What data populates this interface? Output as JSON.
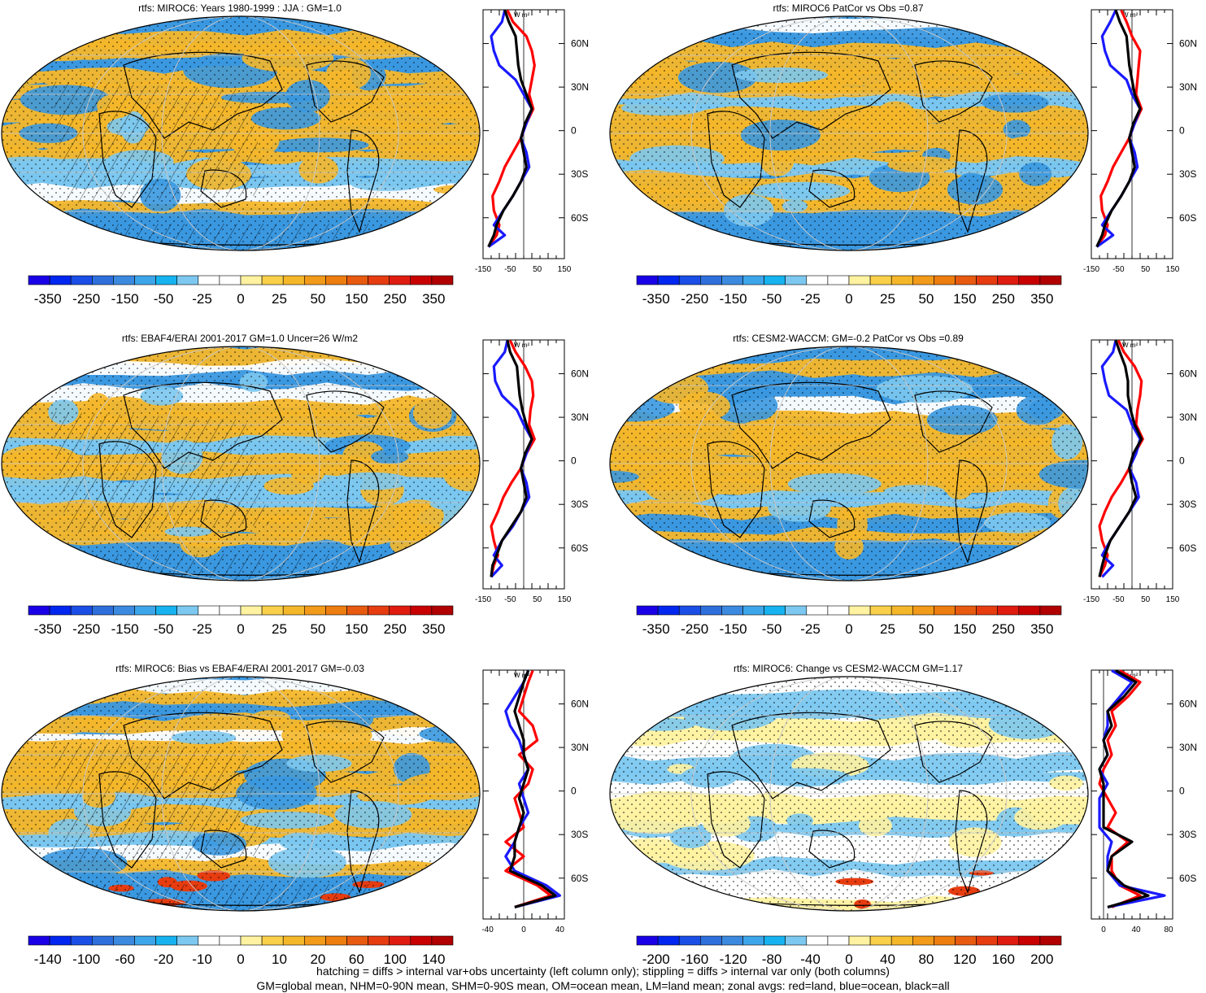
{
  "footnote": {
    "line1": "hatching = diffs > internal var+obs uncertainty (left column only); stippling = diffs > internal var only (both columns)",
    "line2": "GM=global mean, NHM=0-90N mean, SHM=0-90S mean, OM=ocean mean, LM=land mean; zonal avgs: red=land, blue=ocean, black=all"
  },
  "lat_ticks": [
    "60N",
    "30N",
    "0",
    "30S",
    "60S"
  ],
  "lat_values": [
    60,
    30,
    0,
    -30,
    -60
  ],
  "unit_label": "W m²",
  "colors": {
    "land": "#ff0000",
    "ocean": "#1a1aff",
    "all": "#000000",
    "grid": "#c8c8c8",
    "warm": "#f5b72a",
    "cool": "#3a98e0"
  },
  "chart_data": [
    {
      "type": "heatmap",
      "title": "rtfs: MIROC6: Years 1980-1999 : JJA : GM=1.0",
      "colorbar": {
        "labels": [
          "-350",
          "-250",
          "-150",
          "-50",
          "-25",
          "0",
          "25",
          "50",
          "150",
          "250",
          "350"
        ],
        "colors": [
          "#1a00e6",
          "#0026f0",
          "#1a4ee6",
          "#2e6fdc",
          "#3c8ae0",
          "#3da6ea",
          "#16b3f0",
          "#7cc8f0",
          "#ffffff",
          "#ffffff",
          "#fff2a0",
          "#fad04a",
          "#f5b72a",
          "#f29a1a",
          "#ee7d10",
          "#e85a10",
          "#e63c10",
          "#e01c10",
          "#c80000",
          "#b00000"
        ]
      },
      "zonal": {
        "type": "line",
        "xlim": [
          -150,
          150
        ],
        "xticks": [
          -150,
          -50,
          50,
          150
        ],
        "xtick_labels": [
          "-150",
          "-50",
          "50",
          "150"
        ],
        "lat": [
          83,
          75,
          65,
          55,
          45,
          35,
          25,
          15,
          5,
          -5,
          -15,
          -25,
          -35,
          -45,
          -55,
          -65,
          -72,
          -80
        ],
        "series": [
          {
            "key": "land",
            "values": [
              -60,
              -40,
              10,
              30,
              40,
              30,
              20,
              35,
              10,
              -10,
              -40,
              -70,
              -90,
              -115,
              -110,
              -90,
              -100,
              -130
            ]
          },
          {
            "key": "ocean",
            "values": [
              -70,
              -80,
              -120,
              -110,
              -90,
              -30,
              0,
              30,
              10,
              -10,
              10,
              20,
              -10,
              -40,
              -75,
              -110,
              -70,
              -130
            ]
          },
          {
            "key": "all",
            "values": [
              -70,
              -55,
              -30,
              -25,
              -20,
              -10,
              10,
              30,
              5,
              -10,
              0,
              10,
              -10,
              -40,
              -75,
              -100,
              -110,
              -130
            ]
          }
        ]
      }
    },
    {
      "type": "heatmap",
      "title": "rtfs: MIROC6 PatCor vs Obs =0.87",
      "colorbar": {
        "labels": [
          "-350",
          "-250",
          "-150",
          "-50",
          "-25",
          "0",
          "25",
          "50",
          "150",
          "250",
          "350"
        ],
        "colors": [
          "#1a00e6",
          "#0026f0",
          "#1a4ee6",
          "#2e6fdc",
          "#3c8ae0",
          "#3da6ea",
          "#16b3f0",
          "#7cc8f0",
          "#ffffff",
          "#ffffff",
          "#fff2a0",
          "#fad04a",
          "#f5b72a",
          "#f29a1a",
          "#ee7d10",
          "#e85a10",
          "#e63c10",
          "#e01c10",
          "#c80000",
          "#b00000"
        ]
      },
      "zonal": {
        "type": "line",
        "xlim": [
          -150,
          150
        ],
        "xticks": [
          -150,
          -50,
          50,
          150
        ],
        "xtick_labels": [
          "-150",
          "-50",
          "50",
          "150"
        ],
        "lat": [
          83,
          75,
          65,
          55,
          45,
          35,
          25,
          15,
          5,
          -5,
          -15,
          -25,
          -35,
          -45,
          -55,
          -65,
          -72,
          -80
        ],
        "series": [
          {
            "key": "land",
            "values": [
              -40,
              -20,
              0,
              30,
              25,
              20,
              15,
              35,
              10,
              -10,
              -40,
              -70,
              -90,
              -115,
              -110,
              -90,
              -100,
              -130
            ]
          },
          {
            "key": "ocean",
            "values": [
              -60,
              -80,
              -110,
              -100,
              -80,
              -20,
              0,
              30,
              10,
              -10,
              10,
              20,
              -10,
              -40,
              -75,
              -110,
              -70,
              -130
            ]
          },
          {
            "key": "all",
            "values": [
              -60,
              -45,
              -20,
              -15,
              -10,
              0,
              10,
              30,
              5,
              -10,
              0,
              10,
              -10,
              -40,
              -75,
              -100,
              -110,
              -130
            ]
          }
        ]
      }
    },
    {
      "type": "heatmap",
      "title": "rtfs: EBAF4/ERAI 2001-2017 GM=1.0 Uncer=26 W/m2",
      "colorbar": {
        "labels": [
          "-350",
          "-250",
          "-150",
          "-50",
          "-25",
          "0",
          "25",
          "50",
          "150",
          "250",
          "350"
        ],
        "colors": [
          "#1a00e6",
          "#0026f0",
          "#1a4ee6",
          "#2e6fdc",
          "#3c8ae0",
          "#3da6ea",
          "#16b3f0",
          "#7cc8f0",
          "#ffffff",
          "#ffffff",
          "#fff2a0",
          "#fad04a",
          "#f5b72a",
          "#f29a1a",
          "#ee7d10",
          "#e85a10",
          "#e63c10",
          "#e01c10",
          "#c80000",
          "#b00000"
        ]
      },
      "zonal": {
        "type": "line",
        "xlim": [
          -150,
          150
        ],
        "xticks": [
          -150,
          -50,
          50,
          150
        ],
        "xtick_labels": [
          "-150",
          "-50",
          "50",
          "150"
        ],
        "lat": [
          83,
          75,
          65,
          55,
          45,
          35,
          25,
          15,
          5,
          -5,
          -15,
          -25,
          -35,
          -45,
          -55,
          -65,
          -72,
          -80
        ],
        "series": [
          {
            "key": "land",
            "values": [
              -50,
              -30,
              5,
              30,
              35,
              25,
              20,
              40,
              10,
              -10,
              -45,
              -75,
              -95,
              -120,
              -110,
              -95,
              -110,
              -120
            ]
          },
          {
            "key": "ocean",
            "values": [
              -60,
              -70,
              -110,
              -105,
              -80,
              -25,
              0,
              30,
              10,
              -10,
              10,
              20,
              -10,
              -40,
              -80,
              -110,
              -80,
              -120
            ]
          },
          {
            "key": "all",
            "values": [
              -60,
              -50,
              -25,
              -20,
              -15,
              -5,
              10,
              30,
              5,
              -10,
              0,
              10,
              -10,
              -45,
              -80,
              -100,
              -115,
              -120
            ]
          }
        ]
      }
    },
    {
      "type": "heatmap",
      "title": "rtfs: CESM2-WACCM: GM=-0.2 PatCor vs Obs =0.89",
      "colorbar": {
        "labels": [
          "-350",
          "-250",
          "-150",
          "-50",
          "-25",
          "0",
          "25",
          "50",
          "150",
          "250",
          "350"
        ],
        "colors": [
          "#1a00e6",
          "#0026f0",
          "#1a4ee6",
          "#2e6fdc",
          "#3c8ae0",
          "#3da6ea",
          "#16b3f0",
          "#7cc8f0",
          "#ffffff",
          "#ffffff",
          "#fff2a0",
          "#fad04a",
          "#f5b72a",
          "#f29a1a",
          "#ee7d10",
          "#e85a10",
          "#e63c10",
          "#e01c10",
          "#c80000",
          "#b00000"
        ]
      },
      "zonal": {
        "type": "line",
        "xlim": [
          -150,
          150
        ],
        "xticks": [
          -150,
          -50,
          50,
          150
        ],
        "xtick_labels": [
          "-150",
          "-50",
          "50",
          "150"
        ],
        "lat": [
          83,
          75,
          65,
          55,
          45,
          35,
          25,
          15,
          5,
          -5,
          -15,
          -25,
          -35,
          -45,
          -55,
          -65,
          -72,
          -80
        ],
        "series": [
          {
            "key": "land",
            "values": [
              -50,
              -30,
              10,
              35,
              30,
              20,
              15,
              40,
              10,
              -10,
              -40,
              -75,
              -100,
              -120,
              -110,
              -90,
              -100,
              -120
            ]
          },
          {
            "key": "ocean",
            "values": [
              -60,
              -70,
              -110,
              -100,
              -85,
              -20,
              0,
              30,
              15,
              -10,
              15,
              25,
              -10,
              -45,
              -80,
              -110,
              -70,
              -110
            ]
          },
          {
            "key": "all",
            "values": [
              -60,
              -45,
              -25,
              -15,
              -15,
              -5,
              10,
              35,
              5,
              -10,
              0,
              15,
              -10,
              -45,
              -80,
              -100,
              -110,
              -120
            ]
          }
        ]
      }
    },
    {
      "type": "heatmap",
      "title": "rtfs: MIROC6: Bias vs EBAF4/ERAI 2001-2017 GM=-0.03",
      "colorbar": {
        "labels": [
          "-140",
          "-100",
          "-60",
          "-20",
          "-10",
          "0",
          "10",
          "20",
          "60",
          "100",
          "140"
        ],
        "colors": [
          "#1a00e6",
          "#0026f0",
          "#1a4ee6",
          "#2e6fdc",
          "#3c8ae0",
          "#3da6ea",
          "#16b3f0",
          "#7cc8f0",
          "#ffffff",
          "#ffffff",
          "#fff2a0",
          "#fad04a",
          "#f5b72a",
          "#f29a1a",
          "#ee7d10",
          "#e85a10",
          "#e63c10",
          "#e01c10",
          "#c80000",
          "#b00000"
        ]
      },
      "zonal": {
        "type": "line",
        "xlim": [
          -45,
          45
        ],
        "xticks": [
          -40,
          0,
          40
        ],
        "xtick_labels": [
          "-40",
          "0",
          "40"
        ],
        "lat": [
          83,
          75,
          65,
          55,
          45,
          35,
          25,
          15,
          5,
          -5,
          -15,
          -25,
          -35,
          -45,
          -55,
          -65,
          -72,
          -80
        ],
        "series": [
          {
            "key": "land",
            "values": [
              10,
              5,
              0,
              -5,
              10,
              15,
              -5,
              10,
              5,
              -10,
              -5,
              0,
              -20,
              0,
              -20,
              15,
              30,
              -10
            ]
          },
          {
            "key": "ocean",
            "values": [
              5,
              0,
              -10,
              -20,
              -15,
              -5,
              0,
              5,
              -5,
              0,
              5,
              -5,
              -10,
              -20,
              -10,
              25,
              40,
              -10
            ]
          },
          {
            "key": "all",
            "values": [
              5,
              0,
              -5,
              -10,
              -5,
              0,
              0,
              5,
              0,
              -5,
              0,
              -5,
              -10,
              -10,
              -15,
              20,
              35,
              -10
            ]
          }
        ]
      }
    },
    {
      "type": "heatmap",
      "title": "rtfs: MIROC6: Change vs CESM2-WACCM GM=1.17",
      "colorbar": {
        "labels": [
          "-200",
          "-160",
          "-120",
          "-80",
          "-40",
          "0",
          "40",
          "80",
          "120",
          "160",
          "200"
        ],
        "colors": [
          "#1a00e6",
          "#0026f0",
          "#1a4ee6",
          "#2e6fdc",
          "#3c8ae0",
          "#3da6ea",
          "#16b3f0",
          "#7cc8f0",
          "#ffffff",
          "#ffffff",
          "#fff2a0",
          "#fad04a",
          "#f5b72a",
          "#f29a1a",
          "#ee7d10",
          "#e85a10",
          "#e63c10",
          "#e01c10",
          "#c80000",
          "#b00000"
        ]
      },
      "zonal": {
        "type": "line",
        "xlim": [
          -15,
          85
        ],
        "xticks": [
          0,
          40,
          80
        ],
        "xtick_labels": [
          "0",
          "40",
          "80"
        ],
        "lat": [
          83,
          75,
          65,
          55,
          45,
          35,
          25,
          15,
          5,
          -5,
          -15,
          -25,
          -35,
          -45,
          -55,
          -65,
          -72,
          -80
        ],
        "series": [
          {
            "key": "land",
            "values": [
              20,
              45,
              30,
              10,
              15,
              5,
              10,
              0,
              -5,
              5,
              15,
              5,
              30,
              10,
              10,
              20,
              45,
              10
            ]
          },
          {
            "key": "ocean",
            "values": [
              10,
              35,
              20,
              5,
              5,
              0,
              5,
              -5,
              5,
              -5,
              -5,
              -5,
              10,
              5,
              5,
              20,
              75,
              5
            ]
          },
          {
            "key": "all",
            "values": [
              15,
              40,
              25,
              5,
              10,
              0,
              5,
              -5,
              0,
              0,
              0,
              0,
              35,
              10,
              5,
              25,
              55,
              5
            ]
          }
        ]
      }
    }
  ]
}
